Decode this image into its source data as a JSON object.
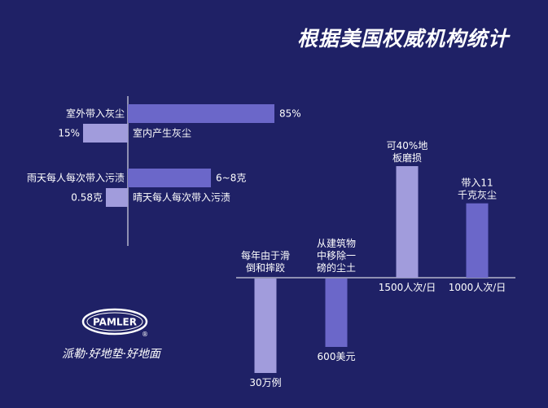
{
  "title": "根据美国权威机构统计",
  "colors": {
    "background": "#1f2166",
    "bar_dark": "#6b67c9",
    "bar_light": "#a19cdc",
    "axis": "#ffffff"
  },
  "chart_data": [
    {
      "type": "bar",
      "orientation": "horizontal",
      "bars": [
        {
          "label": "室外带入灰尘",
          "value_label": "85%",
          "value": 85,
          "color": "bar_dark",
          "side": "right"
        },
        {
          "label": "室内产生灰尘",
          "value_label": "15%",
          "value": 15,
          "color": "bar_light",
          "side": "left"
        }
      ]
    },
    {
      "type": "bar",
      "orientation": "horizontal",
      "bars": [
        {
          "label": "雨天每人每次带入污渍",
          "value_label": "6~8克",
          "value": 7,
          "color": "bar_dark",
          "side": "right"
        },
        {
          "label": "晴天每人每次带入污渍",
          "value_label": "0.58克",
          "value": 0.58,
          "color": "bar_light",
          "side": "left"
        }
      ]
    },
    {
      "type": "bar",
      "orientation": "vertical",
      "bars": [
        {
          "top_label": [
            "每年由于滑",
            "倒和摔跤"
          ],
          "value_label": "30万例",
          "color": "bar_light",
          "direction": "down"
        },
        {
          "top_label": [
            "从建筑物",
            "中移除一",
            "磅的尘土"
          ],
          "value_label": "600美元",
          "color": "bar_dark",
          "direction": "down"
        },
        {
          "top_label": [
            "可40%地",
            "板磨损"
          ],
          "value_label": "1500人次/日",
          "value": 1500,
          "color": "bar_light",
          "direction": "up"
        },
        {
          "top_label": [
            "带入11",
            "千克灰尘"
          ],
          "value_label": "1000人次/日",
          "value": 1000,
          "color": "bar_dark",
          "direction": "up"
        }
      ]
    }
  ],
  "logo": {
    "brand": "PAMLER",
    "registered": "®",
    "slogan": "派勒·好地垫·好地面"
  }
}
